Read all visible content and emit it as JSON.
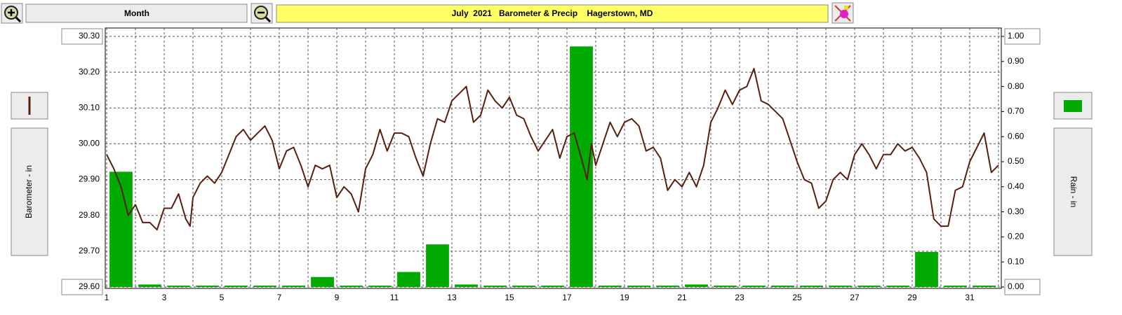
{
  "period": "Month",
  "chart_data": {
    "type": "combo",
    "title": "July  2021   Barometer & Precip    Hagerstown, MD",
    "ylabel": "Barometer - in",
    "y2label": "Rain - in",
    "xlim": [
      1,
      32
    ],
    "xticks": [
      1,
      3,
      5,
      7,
      9,
      11,
      13,
      15,
      17,
      19,
      21,
      23,
      25,
      27,
      29,
      31
    ],
    "xminor": [
      2,
      4,
      6,
      8,
      10,
      12,
      14,
      16,
      18,
      20,
      22,
      24,
      26,
      28,
      30,
      32
    ],
    "ylim": [
      29.6,
      30.3
    ],
    "yticks": [
      {
        "value": 29.6,
        "label": "29.60"
      },
      {
        "value": 29.7,
        "label": "29.70"
      },
      {
        "value": 29.8,
        "label": "29.80"
      },
      {
        "value": 29.9,
        "label": "29.90"
      },
      {
        "value": 30.0,
        "label": "30.00"
      },
      {
        "value": 30.1,
        "label": "30.10"
      },
      {
        "value": 30.2,
        "label": "30.20"
      },
      {
        "value": 30.3,
        "label": "30.30"
      }
    ],
    "y2lim": [
      0,
      1
    ],
    "y2ticks": [
      {
        "value": 0,
        "label": "0.00"
      },
      {
        "value": 0.1,
        "label": "0.10"
      },
      {
        "value": 0.2,
        "label": "0.20"
      },
      {
        "value": 0.3,
        "label": "0.30"
      },
      {
        "value": 0.4,
        "label": "0.40"
      },
      {
        "value": 0.5,
        "label": "0.50"
      },
      {
        "value": 0.6,
        "label": "0.60"
      },
      {
        "value": 0.7,
        "label": "0.70"
      },
      {
        "value": 0.8,
        "label": "0.80"
      },
      {
        "value": 0.9,
        "label": "0.90"
      },
      {
        "value": 1,
        "label": "1.00"
      }
    ],
    "grid": true,
    "series": [
      {
        "type": "bar",
        "axis": "y2",
        "color": "#00aa00",
        "x": [
          1,
          2,
          3,
          4,
          5,
          6,
          7,
          8,
          9,
          10,
          11,
          12,
          13,
          14,
          15,
          16,
          17,
          18,
          19,
          20,
          21,
          22,
          23,
          24,
          25,
          26,
          27,
          28,
          29,
          30,
          31
        ],
        "values": [
          0.46,
          0.01,
          0,
          0,
          0,
          0,
          0,
          0.04,
          0,
          0,
          0.06,
          0.17,
          0.01,
          0,
          0,
          0,
          0.96,
          0,
          0,
          0,
          0.01,
          0,
          0,
          0,
          0,
          0,
          0,
          0,
          0.14,
          0,
          0
        ]
      },
      {
        "type": "line",
        "color": "#5a1e0e",
        "x": [
          1,
          1.25,
          1.5,
          1.75,
          2,
          2.25,
          2.5,
          2.75,
          3,
          3.25,
          3.5,
          3.75,
          3.9,
          4,
          4.25,
          4.5,
          4.75,
          5,
          5.25,
          5.5,
          5.75,
          6,
          6.25,
          6.5,
          6.75,
          7,
          7.25,
          7.5,
          7.75,
          8,
          8.25,
          8.5,
          8.75,
          9,
          9.25,
          9.5,
          9.75,
          10,
          10.25,
          10.5,
          10.75,
          11,
          11.25,
          11.5,
          11.75,
          12,
          12.25,
          12.5,
          12.75,
          13,
          13.25,
          13.5,
          13.75,
          14,
          14.25,
          14.5,
          14.75,
          15,
          15.25,
          15.5,
          15.75,
          16,
          16.25,
          16.5,
          16.75,
          17,
          17.25,
          17.5,
          17.7,
          17.85,
          18,
          18.25,
          18.5,
          18.75,
          19,
          19.25,
          19.5,
          19.75,
          20,
          20.25,
          20.5,
          20.75,
          21,
          21.25,
          21.5,
          21.75,
          22,
          22.25,
          22.5,
          22.75,
          23,
          23.25,
          23.5,
          23.75,
          24,
          24.25,
          24.5,
          24.75,
          25,
          25.25,
          25.5,
          25.75,
          26,
          26.25,
          26.5,
          26.75,
          27,
          27.25,
          27.5,
          27.75,
          28,
          28.25,
          28.5,
          28.75,
          29,
          29.25,
          29.5,
          29.75,
          30,
          30.25,
          30.5,
          30.75,
          31,
          31.25,
          31.5,
          31.75,
          32
        ],
        "values": [
          29.97,
          29.93,
          29.88,
          29.8,
          29.83,
          29.78,
          29.78,
          29.76,
          29.82,
          29.82,
          29.86,
          29.79,
          29.77,
          29.85,
          29.89,
          29.91,
          29.89,
          29.92,
          29.97,
          30.02,
          30.04,
          30.01,
          30.03,
          30.05,
          30.01,
          29.93,
          29.98,
          29.99,
          29.94,
          29.88,
          29.94,
          29.93,
          29.94,
          29.85,
          29.88,
          29.86,
          29.81,
          29.93,
          29.97,
          30.04,
          29.98,
          30.03,
          30.03,
          30.02,
          29.96,
          29.91,
          30.0,
          30.07,
          30.06,
          30.12,
          30.14,
          30.16,
          30.06,
          30.08,
          30.15,
          30.12,
          30.1,
          30.13,
          30.08,
          30.07,
          30.02,
          29.98,
          30.01,
          30.04,
          29.96,
          30.02,
          30.03,
          29.96,
          29.9,
          30.0,
          29.94,
          30.0,
          30.06,
          30.02,
          30.06,
          30.07,
          30.05,
          29.98,
          29.99,
          29.96,
          29.87,
          29.9,
          29.88,
          29.92,
          29.88,
          29.94,
          30.06,
          30.1,
          30.15,
          30.11,
          30.15,
          30.16,
          30.21,
          30.12,
          30.11,
          30.09,
          30.07,
          30.01,
          29.95,
          29.9,
          29.89,
          29.82,
          29.84,
          29.9,
          29.92,
          29.9,
          29.97,
          30.0,
          29.97,
          29.93,
          29.97,
          29.97,
          30.0,
          29.98,
          29.99,
          29.96,
          29.92,
          29.79,
          29.77,
          29.77,
          29.87,
          29.88,
          29.95,
          29.99,
          30.03,
          29.92,
          29.94
        ]
      }
    ]
  }
}
